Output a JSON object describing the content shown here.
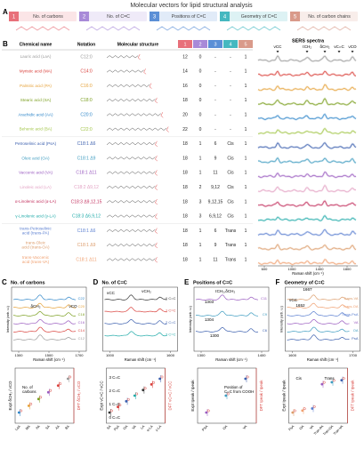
{
  "title": "Molecular vectors for lipid structural analysis",
  "panel_a": {
    "label": "A",
    "vectors": [
      {
        "num": "1",
        "label": "No. of carbons",
        "color": "#e8707a"
      },
      {
        "num": "2",
        "label": "No. of C=C",
        "color": "#a88ad8"
      },
      {
        "num": "3",
        "label": "Positions of C=C",
        "color": "#5b8fd6"
      },
      {
        "num": "4",
        "label": "Geometry of C=C",
        "color": "#45b8c0"
      },
      {
        "num": "5",
        "label": "No. of carbon chains",
        "color": "#d99a8a"
      }
    ]
  },
  "panel_b": {
    "label": "B",
    "headers": {
      "name": "Chemical name",
      "notation": "Notation",
      "structure": "Molecular structure",
      "spectra": "SERS spectra"
    },
    "rows": [
      {
        "name": [
          "Lauric acid (LaA)"
        ],
        "notation": "C12:0",
        "vectors": [
          12,
          0,
          "-",
          "-",
          1
        ],
        "color": "#9a9a9a"
      },
      {
        "name": [
          "Myristic acid (MA)"
        ],
        "notation": "C14:0",
        "vectors": [
          14,
          0,
          "-",
          "-",
          1
        ],
        "color": "#d9413c"
      },
      {
        "name": [
          "Palmitic acid (PA)"
        ],
        "notation": "C16:0",
        "vectors": [
          16,
          0,
          "-",
          "-",
          1
        ],
        "color": "#e6a23a"
      },
      {
        "name": [
          "Stearic acid (SA)"
        ],
        "notation": "C18:0",
        "vectors": [
          18,
          0,
          "-",
          "-",
          1
        ],
        "color": "#7a9e1e"
      },
      {
        "name": [
          "Arachidic acid (AA)"
        ],
        "notation": "C20:0",
        "vectors": [
          20,
          0,
          "-",
          "-",
          1
        ],
        "color": "#2f86c9"
      },
      {
        "name": [
          "Behenic acid (BA)"
        ],
        "notation": "C22:0",
        "vectors": [
          22,
          0,
          "-",
          "-",
          1
        ],
        "color": "#a3c64a"
      },
      {
        "name": [
          "Petroselinic acid (PsA)"
        ],
        "notation": "C18:1 Δ6",
        "vectors": [
          18,
          1,
          6,
          "Cis",
          1
        ],
        "color": "#3b5fae"
      },
      {
        "name": [
          "Oleic acid (OA)"
        ],
        "notation": "C18:1 Δ9",
        "vectors": [
          18,
          1,
          9,
          "Cis",
          1
        ],
        "color": "#3e9cc0"
      },
      {
        "name": [
          "Vaccenic acid (VA)"
        ],
        "notation": "C18:1 Δ11",
        "vectors": [
          18,
          1,
          11,
          "Cis",
          1
        ],
        "color": "#9a5cc0"
      },
      {
        "name": [
          "Linoleic acid (LA)"
        ],
        "notation": "C18:2 Δ9,12",
        "vectors": [
          18,
          2,
          "9,12",
          "Cis",
          1
        ],
        "color": "#e3a2c4"
      },
      {
        "name": [
          "α-Linolenic acid (α-LA)"
        ],
        "notation": "C18:3 Δ9,12,15",
        "vectors": [
          18,
          3,
          "9,12,15",
          "Cis",
          1
        ],
        "color": "#c2305e"
      },
      {
        "name": [
          "γ-Linolenic acid (γ-LA)"
        ],
        "notation": "C18:3 Δ6,9,12",
        "vectors": [
          18,
          3,
          "6,9,12",
          "Cis",
          1
        ],
        "color": "#1faaa8"
      },
      {
        "name": [
          "trans-Petroselinic",
          "acid (trans-PA)"
        ],
        "notation": "C18:1 Δ6",
        "vectors": [
          18,
          1,
          6,
          "Trans",
          1
        ],
        "color": "#5b7fd0"
      },
      {
        "name": [
          "trans-Oleic",
          "acid (trans-OA)"
        ],
        "notation": "C18:1 Δ9",
        "vectors": [
          18,
          1,
          9,
          "Trans",
          1
        ],
        "color": "#dc9c6a"
      },
      {
        "name": [
          "trans-Vaccenic",
          "acid (trans-VA)"
        ],
        "notation": "C18:1 Δ11",
        "vectors": [
          18,
          1,
          11,
          "Trans",
          1
        ],
        "color": "#f0a070"
      }
    ],
    "spectra_bands": [
      "νCC",
      "τCH₂",
      "δCH₂",
      "νC=C",
      "νCO"
    ],
    "x_axis": "Raman shift (cm⁻¹)",
    "xticks": [
      "600",
      "1000",
      "1400",
      "1800"
    ]
  },
  "panels": [
    {
      "label": "C",
      "title": "No. of carbons",
      "y_label": "Intensity (arb. u.)",
      "x_label": "Raman shift (cm⁻¹)",
      "xticks": [
        "1300",
        "1500",
        "1700"
      ],
      "legend": [
        "C22",
        "C20",
        "C18",
        "C16",
        "C14",
        "C12"
      ],
      "annotations": [
        "δCH₂",
        "νCO"
      ],
      "categories": [
        "LaA",
        "MA",
        "PA",
        "SA",
        "AA",
        "BA"
      ],
      "expt_label": "Expt δCH₂ / νCO",
      "dft_label": "DFT δCH₂ / νCO",
      "notes": [
        "No. of",
        "carbons"
      ]
    },
    {
      "label": "D",
      "title": "No. of C=C",
      "x_label": "Raman shift (cm⁻¹)",
      "xticks": [
        "1000",
        "1600"
      ],
      "legend": [
        "0 C=C",
        "1 C=C",
        "2 C=C",
        "3 C=C"
      ],
      "annotations": [
        "νCC",
        "νCH₂"
      ],
      "categories": [
        "SA",
        "PsA",
        "OA",
        "VA",
        "LA",
        "α-LA",
        "γ-LA"
      ],
      "expt_label": "Expt νC=C / νCC",
      "dft_label": "DFT νC=C / νCC",
      "notes": [
        "0 C=C",
        "1 C=C",
        "2 C=C",
        "3 C=C"
      ]
    },
    {
      "label": "E",
      "title": "Positions of C=C",
      "y_label": "Intensity (arb. u.)",
      "x_label": "Raman shift (cm⁻¹)",
      "xticks": [
        "1300",
        "1400"
      ],
      "legend": [
        "C11",
        "C9",
        "C6"
      ],
      "annotations": [
        "τCH₂,δCH₂",
        "1303",
        "1304",
        "1300"
      ],
      "categories": [
        "PSA",
        "OA",
        "VA"
      ],
      "expt_label": "Expt Ipeak / Ipeak",
      "dft_label": "DFT Ipeak / Ipeak",
      "notes": [
        "Position of",
        "C=C from COOH"
      ]
    },
    {
      "label": "F",
      "title": "Geometry of C=C",
      "y_label": "Intensity (arb. u.)",
      "x_label": "Raman shift (cm⁻¹)",
      "xticks": [
        "1600",
        "1700"
      ],
      "legend": [
        "Trans-VA",
        "Trans-OA",
        "Trans-PsA",
        "VA",
        "OA",
        "PsA"
      ],
      "annotations": [
        "νCC",
        "1667",
        "1652"
      ],
      "categories": [
        "PsA",
        "OA",
        "VA",
        "Tran-PA",
        "Tran-OA",
        "Tran-VA"
      ],
      "expt_label": "Expt Ipeak / Ipeak",
      "dft_label": "DFT Ipeak / Ipeak",
      "notes": [
        "Cis",
        "Trans"
      ]
    }
  ]
}
